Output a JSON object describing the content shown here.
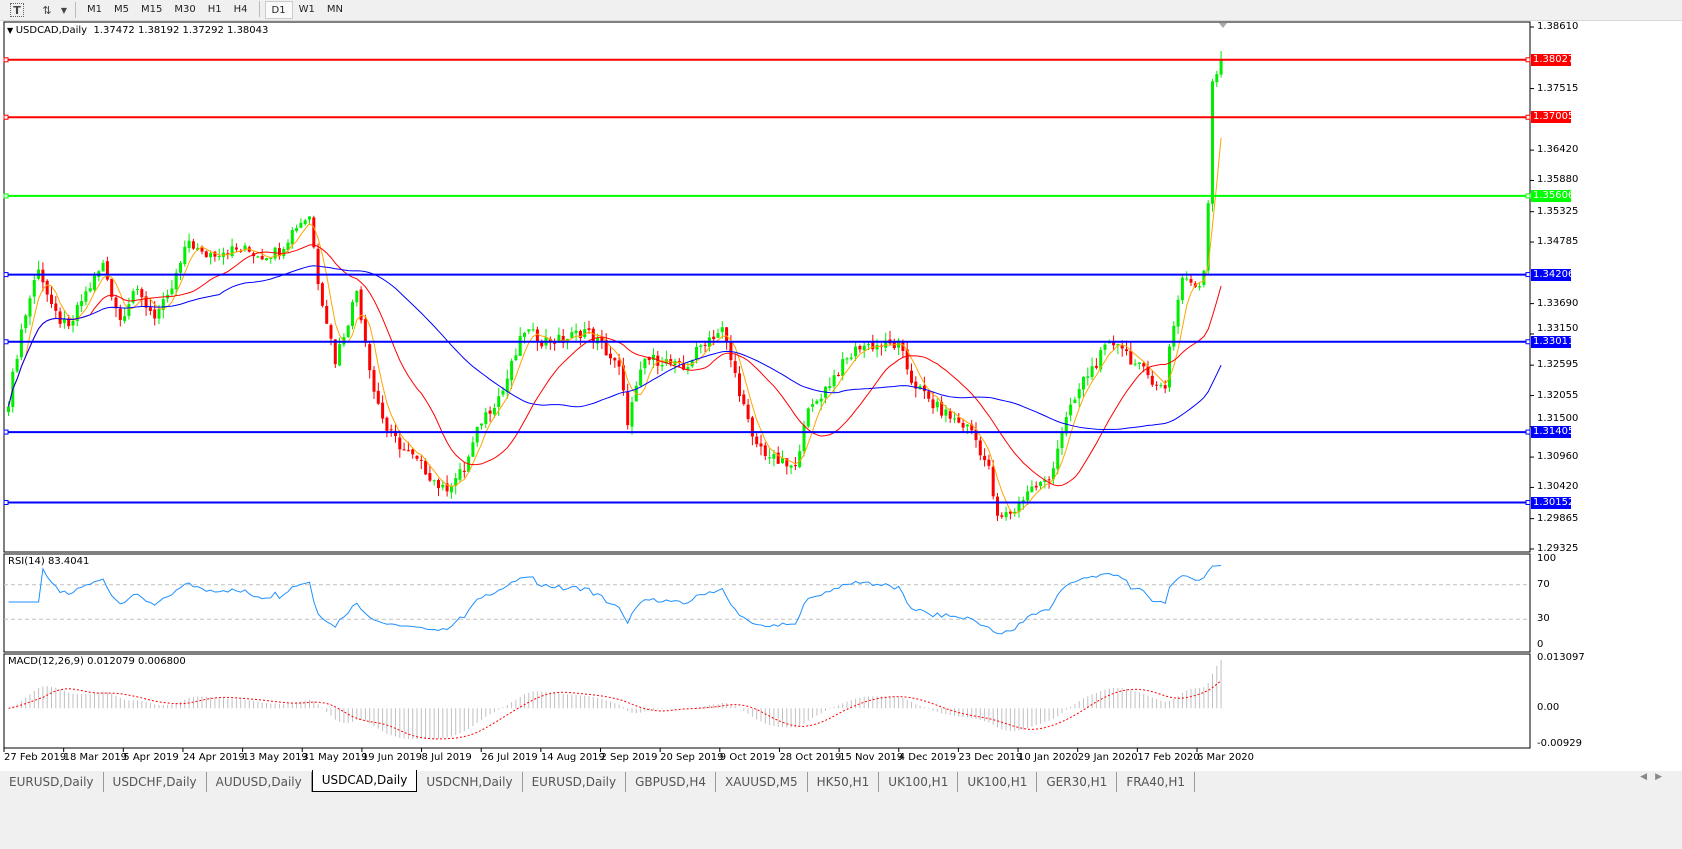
{
  "toolbar": {
    "icons": [
      "text-icon",
      "arrows-icon",
      "dropdown-icon"
    ],
    "timeframes": [
      "M1",
      "M5",
      "M15",
      "M30",
      "H1",
      "H4",
      "D1",
      "W1",
      "MN"
    ],
    "active": "D1"
  },
  "chart": {
    "symbol_label": "USDCAD,Daily",
    "ohlc": "1.37472 1.38192 1.37292 1.38043",
    "price_axis": {
      "max": 1.3861,
      "min": 1.29325,
      "ticks": [
        "1.38610",
        "1.37515",
        "1.36420",
        "1.35880",
        "1.35325",
        "1.34785",
        "1.33690",
        "1.33150",
        "1.32595",
        "1.32055",
        "1.31500",
        "1.30960",
        "1.30420",
        "1.29865",
        "1.29325"
      ]
    },
    "levels": [
      {
        "price": "1.38027",
        "color": "#ff0000"
      },
      {
        "price": "1.37005",
        "color": "#ff0000"
      },
      {
        "price": "1.35606",
        "color": "#00ff00"
      },
      {
        "price": "1.34206",
        "color": "#0000ff"
      },
      {
        "price": "1.33011",
        "color": "#0000ff"
      },
      {
        "price": "1.31405",
        "color": "#0000ff"
      },
      {
        "price": "1.30152",
        "color": "#0000ff"
      }
    ],
    "colors": {
      "bull": "#00ee00",
      "bear": "#ff0000",
      "ma_fast": "#ffa500",
      "ma_mid": "#ff0000",
      "ma_slow": "#0000ff",
      "rsi": "#1e90ff",
      "macd_hist": "#c0c0c0",
      "macd_signal": "#ff0000"
    },
    "price_keypoints": [
      [
        0,
        1.3197
      ],
      [
        3,
        1.3322
      ],
      [
        7,
        1.3437
      ],
      [
        10,
        1.3358
      ],
      [
        14,
        1.3322
      ],
      [
        17,
        1.3375
      ],
      [
        22,
        1.3438
      ],
      [
        26,
        1.334
      ],
      [
        29,
        1.3393
      ],
      [
        34,
        1.3349
      ],
      [
        37,
        1.3375
      ],
      [
        42,
        1.3482
      ],
      [
        45,
        1.3455
      ],
      [
        50,
        1.3464
      ],
      [
        55,
        1.3464
      ],
      [
        59,
        1.3455
      ],
      [
        63,
        1.3464
      ],
      [
        67,
        1.3509
      ],
      [
        70,
        1.3527
      ],
      [
        72,
        1.3411
      ],
      [
        76,
        1.3269
      ],
      [
        79,
        1.334
      ],
      [
        81,
        1.3393
      ],
      [
        85,
        1.3215
      ],
      [
        88,
        1.3144
      ],
      [
        92,
        1.3109
      ],
      [
        97,
        1.3073
      ],
      [
        101,
        1.3037
      ],
      [
        106,
        1.3073
      ],
      [
        110,
        1.3162
      ],
      [
        115,
        1.3215
      ],
      [
        120,
        1.3322
      ],
      [
        124,
        1.3304
      ],
      [
        129,
        1.3304
      ],
      [
        134,
        1.3322
      ],
      [
        138,
        1.3295
      ],
      [
        142,
        1.3251
      ],
      [
        144,
        1.3162
      ],
      [
        148,
        1.3269
      ],
      [
        152,
        1.3269
      ],
      [
        157,
        1.3251
      ],
      [
        162,
        1.3304
      ],
      [
        166,
        1.3322
      ],
      [
        170,
        1.3215
      ],
      [
        173,
        1.3126
      ],
      [
        178,
        1.3091
      ],
      [
        183,
        1.3073
      ],
      [
        185,
        1.3162
      ],
      [
        188,
        1.3197
      ],
      [
        193,
        1.3251
      ],
      [
        198,
        1.3295
      ],
      [
        202,
        1.3295
      ],
      [
        207,
        1.3295
      ],
      [
        210,
        1.3233
      ],
      [
        215,
        1.3189
      ],
      [
        220,
        1.3162
      ],
      [
        224,
        1.3144
      ],
      [
        228,
        1.3073
      ],
      [
        230,
        1.2984
      ],
      [
        234,
        1.3002
      ],
      [
        237,
        1.3037
      ],
      [
        242,
        1.3055
      ],
      [
        245,
        1.3144
      ],
      [
        250,
        1.3233
      ],
      [
        255,
        1.3286
      ],
      [
        258,
        1.3304
      ],
      [
        262,
        1.326
      ],
      [
        265,
        1.3242
      ],
      [
        269,
        1.3215
      ],
      [
        270,
        1.3295
      ],
      [
        272,
        1.3375
      ],
      [
        273,
        1.342
      ],
      [
        277,
        1.3393
      ],
      [
        278,
        1.3429
      ],
      [
        279,
        1.3553
      ],
      [
        280,
        1.3767
      ],
      [
        282,
        1.3804
      ]
    ],
    "rsi": {
      "label": "RSI(14) 83.4041",
      "ticks": [
        "100",
        "70",
        "30",
        "0"
      ]
    },
    "macd": {
      "label": "MACD(12,26,9) 0.012079 0.006800",
      "ticks": [
        "0.013097",
        "0.00",
        "-0.00929"
      ],
      "max": 0.013097,
      "min": -0.00929
    },
    "dates": [
      "27 Feb 2019",
      "18 Mar 2019",
      "5 Apr 2019",
      "24 Apr 2019",
      "13 May 2019",
      "31 May 2019",
      "19 Jun 2019",
      "8 Jul 2019",
      "26 Jul 2019",
      "14 Aug 2019",
      "2 Sep 2019",
      "20 Sep 2019",
      "9 Oct 2019",
      "28 Oct 2019",
      "15 Nov 2019",
      "4 Dec 2019",
      "23 Dec 2019",
      "10 Jan 2020",
      "29 Jan 2020",
      "17 Feb 2020",
      "6 Mar 2020"
    ]
  },
  "tabs": [
    "EURUSD,Daily",
    "USDCHF,Daily",
    "AUDUSD,Daily",
    "USDCAD,Daily",
    "USDCNH,Daily",
    "EURUSD,Daily",
    "GBPUSD,H4",
    "XAUUSD,M5",
    "HK50,H1",
    "UK100,H1",
    "UK100,H1",
    "GER30,H1",
    "FRA40,H1"
  ],
  "active_tab": "USDCAD,Daily"
}
